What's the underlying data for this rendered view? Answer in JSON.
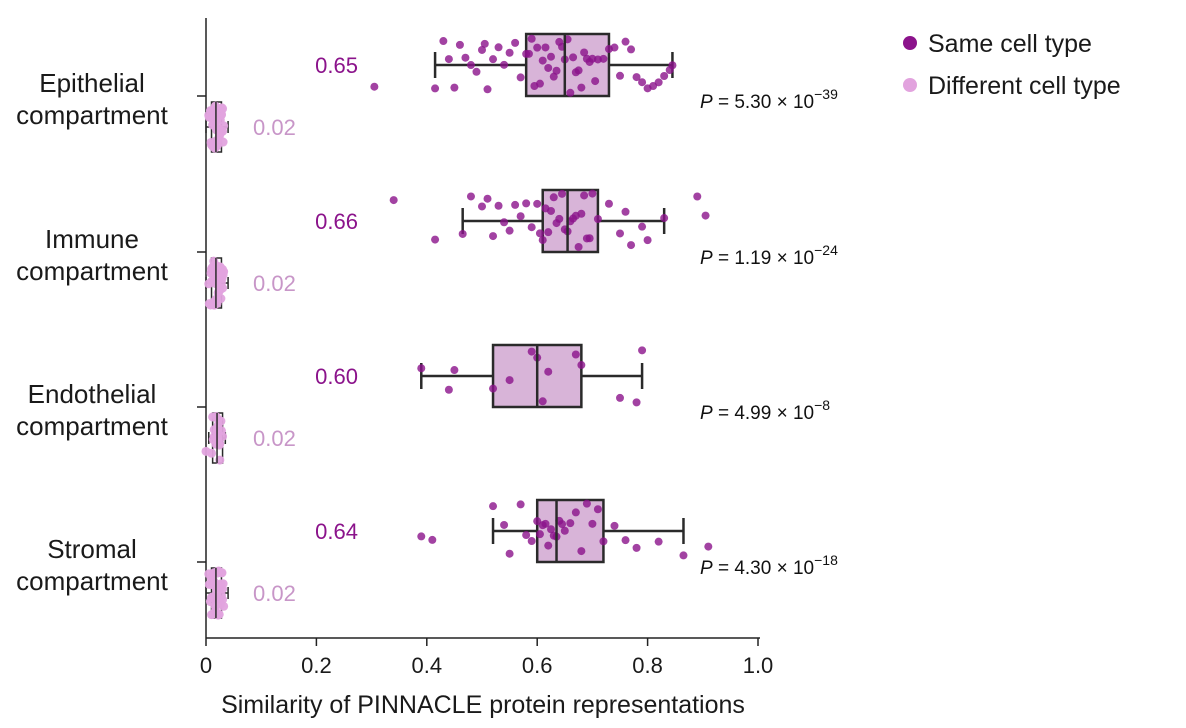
{
  "colors": {
    "same": "#8b138b",
    "same_box": "#d8b4d8",
    "different": "#e2a3de",
    "different_text": "#c896c8",
    "axis": "#222222"
  },
  "legend": [
    {
      "label": "Same cell type",
      "color": "#8b138b"
    },
    {
      "label": "Different cell type",
      "color": "#e2a3de"
    }
  ],
  "chart_data": {
    "type": "box",
    "orientation": "horizontal",
    "xlabel": "Similarity of PINNACLE protein representations",
    "xlim": [
      0,
      1.0
    ],
    "xticks": [
      0,
      0.2,
      0.4,
      0.6,
      0.8,
      1.0
    ],
    "xtick_labels": [
      "0",
      "0.2",
      "0.4",
      "0.6",
      "0.8",
      "1.0"
    ],
    "legend_position": "top-right",
    "categories": [
      {
        "name_lines": [
          "Epithelial",
          "compartment"
        ],
        "p_value": {
          "mantissa": "5.30",
          "exponent": "−39"
        },
        "same": {
          "median_label": "0.65",
          "q1": 0.58,
          "median": 0.65,
          "q3": 0.73,
          "whisker_low": 0.415,
          "whisker_high": 0.845,
          "points": [
            0.305,
            0.415,
            0.43,
            0.44,
            0.45,
            0.46,
            0.47,
            0.48,
            0.49,
            0.5,
            0.505,
            0.51,
            0.52,
            0.53,
            0.54,
            0.55,
            0.56,
            0.57,
            0.58,
            0.585,
            0.59,
            0.595,
            0.6,
            0.605,
            0.61,
            0.615,
            0.62,
            0.625,
            0.63,
            0.635,
            0.64,
            0.645,
            0.65,
            0.655,
            0.66,
            0.665,
            0.67,
            0.675,
            0.68,
            0.685,
            0.69,
            0.695,
            0.7,
            0.705,
            0.71,
            0.72,
            0.73,
            0.74,
            0.75,
            0.76,
            0.77,
            0.78,
            0.79,
            0.8,
            0.81,
            0.82,
            0.83,
            0.84,
            0.845
          ]
        },
        "different": {
          "median_label": "0.02",
          "q1": 0.01,
          "median": 0.018,
          "q3": 0.028,
          "whisker_low": 0.0,
          "whisker_high": 0.04,
          "points": [
            0.005,
            0.008,
            0.01,
            0.012,
            0.014,
            0.016,
            0.018,
            0.02,
            0.022,
            0.024,
            0.026,
            0.028,
            0.03,
            0.032,
            0.01,
            0.015,
            0.02,
            0.025,
            0.012,
            0.018,
            0.022,
            0.028,
            0.006,
            0.03,
            0.014,
            0.024,
            0.016,
            0.02,
            0.026,
            0.009,
            0.019,
            0.029,
            0.011,
            0.021,
            0.031,
            0.013,
            0.023,
            0.017,
            0.027,
            0.015
          ]
        }
      },
      {
        "name_lines": [
          "Immune",
          "compartment"
        ],
        "p_value": {
          "mantissa": "1.19",
          "exponent": "−24"
        },
        "same": {
          "median_label": "0.66",
          "q1": 0.61,
          "median": 0.655,
          "q3": 0.71,
          "whisker_low": 0.465,
          "whisker_high": 0.83,
          "points": [
            0.34,
            0.415,
            0.465,
            0.48,
            0.5,
            0.51,
            0.52,
            0.53,
            0.54,
            0.55,
            0.56,
            0.57,
            0.58,
            0.59,
            0.6,
            0.605,
            0.61,
            0.615,
            0.62,
            0.625,
            0.63,
            0.635,
            0.64,
            0.645,
            0.65,
            0.655,
            0.66,
            0.665,
            0.67,
            0.675,
            0.68,
            0.685,
            0.69,
            0.695,
            0.7,
            0.71,
            0.73,
            0.75,
            0.76,
            0.77,
            0.79,
            0.8,
            0.83,
            0.89,
            0.905
          ]
        },
        "different": {
          "median_label": "0.02",
          "q1": 0.01,
          "median": 0.018,
          "q3": 0.028,
          "whisker_low": 0.0,
          "whisker_high": 0.04,
          "points": [
            0.005,
            0.008,
            0.01,
            0.012,
            0.014,
            0.016,
            0.018,
            0.02,
            0.022,
            0.024,
            0.026,
            0.028,
            0.03,
            0.032,
            0.01,
            0.015,
            0.02,
            0.025,
            0.012,
            0.018,
            0.022,
            0.028,
            0.006,
            0.03,
            0.014,
            0.024,
            0.016,
            0.02,
            0.026,
            0.009,
            0.019,
            0.029,
            0.011,
            0.021,
            0.031,
            0.013,
            0.023,
            0.017,
            0.027,
            0.015
          ]
        }
      },
      {
        "name_lines": [
          "Endothelial",
          "compartment"
        ],
        "p_value": {
          "mantissa": "4.99",
          "exponent": "−8"
        },
        "same": {
          "median_label": "0.60",
          "q1": 0.52,
          "median": 0.6,
          "q3": 0.68,
          "whisker_low": 0.39,
          "whisker_high": 0.79,
          "points": [
            0.39,
            0.44,
            0.45,
            0.52,
            0.55,
            0.59,
            0.6,
            0.61,
            0.62,
            0.67,
            0.68,
            0.75,
            0.78,
            0.79
          ]
        },
        "different": {
          "median_label": "0.02",
          "q1": 0.012,
          "median": 0.02,
          "q3": 0.03,
          "whisker_low": 0.005,
          "whisker_high": 0.035,
          "points": [
            0.0,
            0.01,
            0.012,
            0.015,
            0.018,
            0.02,
            0.022,
            0.025,
            0.028,
            0.03,
            0.015,
            0.02,
            0.025,
            0.018,
            0.022,
            0.027,
            0.013,
            0.024
          ]
        }
      },
      {
        "name_lines": [
          "Stromal",
          "compartment"
        ],
        "p_value": {
          "mantissa": "4.30",
          "exponent": "−18"
        },
        "same": {
          "median_label": "0.64",
          "q1": 0.6,
          "median": 0.635,
          "q3": 0.72,
          "whisker_low": 0.52,
          "whisker_high": 0.865,
          "points": [
            0.39,
            0.41,
            0.52,
            0.54,
            0.55,
            0.57,
            0.58,
            0.59,
            0.6,
            0.605,
            0.61,
            0.615,
            0.62,
            0.625,
            0.63,
            0.635,
            0.64,
            0.645,
            0.65,
            0.66,
            0.67,
            0.68,
            0.69,
            0.7,
            0.71,
            0.72,
            0.74,
            0.76,
            0.78,
            0.82,
            0.865,
            0.91
          ]
        },
        "different": {
          "median_label": "0.02",
          "q1": 0.01,
          "median": 0.018,
          "q3": 0.028,
          "whisker_low": 0.0,
          "whisker_high": 0.04,
          "points": [
            0.005,
            0.008,
            0.01,
            0.012,
            0.014,
            0.016,
            0.018,
            0.02,
            0.022,
            0.024,
            0.026,
            0.028,
            0.03,
            0.032,
            0.01,
            0.015,
            0.02,
            0.025,
            0.012,
            0.018,
            0.022,
            0.028,
            0.006,
            0.03,
            0.014,
            0.024,
            0.016,
            0.02,
            0.026,
            0.009,
            0.019,
            0.029,
            0.011,
            0.021,
            0.031,
            0.013,
            0.023,
            0.017,
            0.027,
            0.015
          ]
        }
      }
    ]
  }
}
